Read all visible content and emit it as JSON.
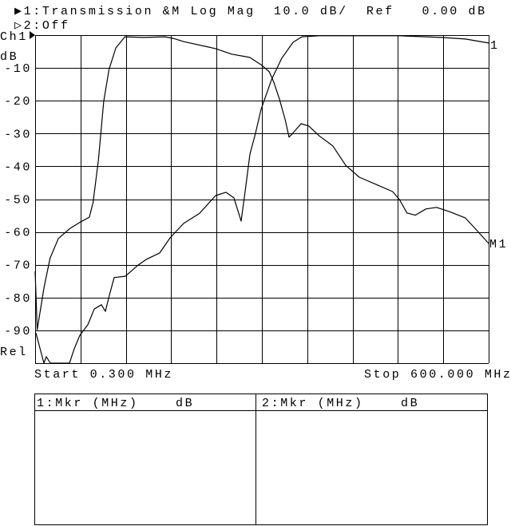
{
  "header": {
    "line1": "▶1:Transmission &M Log Mag  10.0 dB/  Ref   0.00 dB   C",
    "line2": "▷2:Off"
  },
  "axis": {
    "channel_label": "Ch1",
    "unit_label": "dB",
    "rel_label": "Rel",
    "y_ticks": [
      "-10",
      "-20",
      "-30",
      "-40",
      "-50",
      "-60",
      "-70",
      "-80",
      "-90"
    ],
    "start_label": "Start 0.300 MHz",
    "stop_label": "Stop 600.000 MHz"
  },
  "trace_labels": {
    "trace_end": "1",
    "marker": "M1"
  },
  "marker_table": {
    "col1_header": "1:Mkr (MHz)    dB",
    "col2_header": "2:Mkr (MHz)    dB"
  },
  "chart_data": {
    "type": "line",
    "xlabel": "",
    "ylabel": "dB",
    "xlim": [
      0.3,
      600.0
    ],
    "ylim": [
      -100,
      0
    ],
    "x_unit": "MHz",
    "y_scale_per_div": 10.0,
    "reference_db": 0.0,
    "grid": true,
    "series": [
      {
        "points": [
          [
            0.3,
            -72
          ],
          [
            3,
            -89.8
          ],
          [
            12,
            -77
          ],
          [
            20,
            -68
          ],
          [
            31,
            -62
          ],
          [
            46,
            -59
          ],
          [
            60,
            -57
          ],
          [
            72,
            -55.5
          ],
          [
            77,
            -51
          ],
          [
            84,
            -38
          ],
          [
            91,
            -20.2
          ],
          [
            98,
            -10.5
          ],
          [
            107,
            -3.9
          ],
          [
            119,
            -0.5
          ],
          [
            144,
            -0.7
          ],
          [
            172,
            -0.5
          ],
          [
            183,
            -1
          ],
          [
            197,
            -2
          ],
          [
            225,
            -3.4
          ],
          [
            239,
            -4.1
          ],
          [
            260,
            -5.8
          ],
          [
            284,
            -6.8
          ],
          [
            300,
            -9.2
          ],
          [
            310,
            -11.2
          ],
          [
            316,
            -14.4
          ],
          [
            323,
            -19.2
          ],
          [
            331,
            -25.8
          ],
          [
            336,
            -31.1
          ],
          [
            341,
            -29.9
          ],
          [
            352,
            -27
          ],
          [
            362,
            -27.7
          ],
          [
            376,
            -30.7
          ],
          [
            394,
            -33.8
          ],
          [
            411,
            -39.7
          ],
          [
            429,
            -43.3
          ],
          [
            453,
            -45.7
          ],
          [
            473,
            -47.7
          ],
          [
            482,
            -50.1
          ],
          [
            492,
            -54.2
          ],
          [
            503,
            -54.9
          ],
          [
            517,
            -53
          ],
          [
            531,
            -52.5
          ],
          [
            548,
            -53.8
          ],
          [
            569,
            -55.7
          ],
          [
            584,
            -59.4
          ],
          [
            600,
            -63.5
          ]
        ]
      },
      {
        "points": [
          [
            1.4,
            -90.8
          ],
          [
            6.6,
            -95.4
          ],
          [
            11.9,
            -100
          ],
          [
            15.1,
            -98
          ],
          [
            20.4,
            -100
          ],
          [
            45.7,
            -100
          ],
          [
            52,
            -95.6
          ],
          [
            59.4,
            -91.5
          ],
          [
            70,
            -88.3
          ],
          [
            78.4,
            -83.5
          ],
          [
            87.9,
            -82.2
          ],
          [
            93.2,
            -84.2
          ],
          [
            98.5,
            -79.3
          ],
          [
            104.8,
            -73.9
          ],
          [
            119.6,
            -73.5
          ],
          [
            136.5,
            -70.1
          ],
          [
            147.1,
            -68.4
          ],
          [
            165,
            -66.4
          ],
          [
            178.7,
            -61.8
          ],
          [
            196.7,
            -57.4
          ],
          [
            217.8,
            -54.3
          ],
          [
            238.9,
            -48.9
          ],
          [
            252.6,
            -47.9
          ],
          [
            263.2,
            -49.6
          ],
          [
            272.7,
            -56.7
          ],
          [
            278,
            -47.7
          ],
          [
            284.3,
            -36.3
          ],
          [
            291.7,
            -29.9
          ],
          [
            299.1,
            -22.6
          ],
          [
            312.8,
            -13.6
          ],
          [
            326.5,
            -7
          ],
          [
            341.3,
            -2.2
          ],
          [
            352.9,
            -0.5
          ],
          [
            376.2,
            -0.2
          ],
          [
            481.7,
            -0.2
          ],
          [
            537.7,
            -0.7
          ],
          [
            569.4,
            -1.2
          ],
          [
            600,
            -2.4
          ]
        ]
      }
    ]
  }
}
